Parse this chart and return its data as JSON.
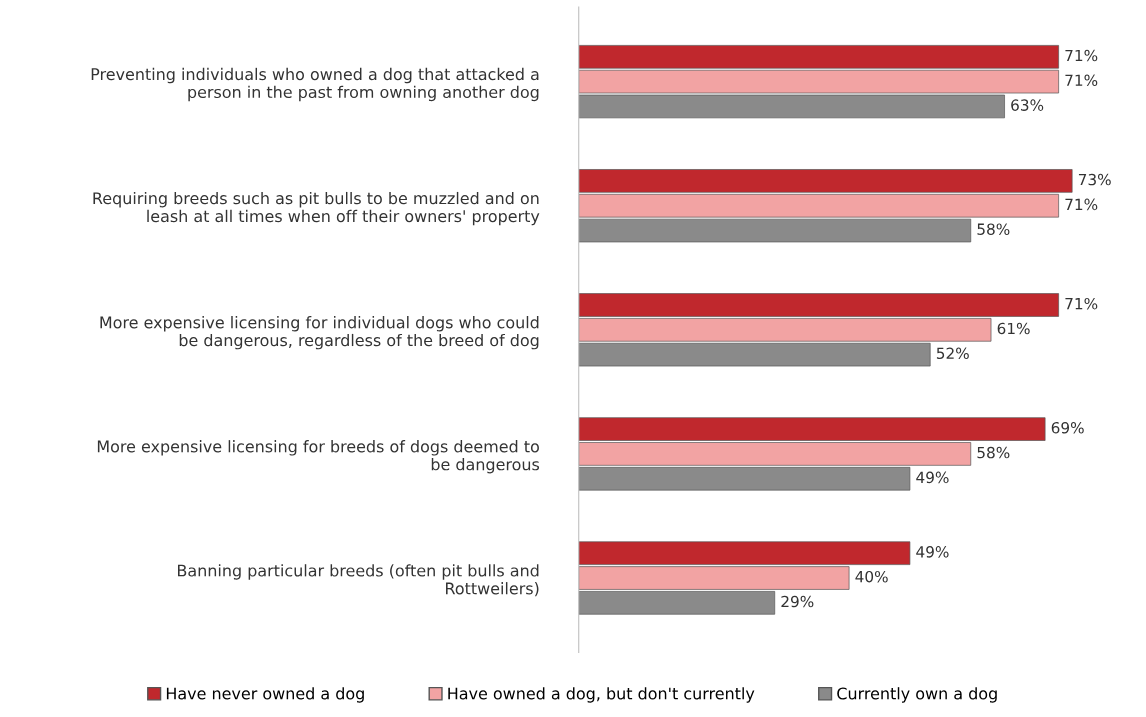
{
  "chart_data": {
    "type": "bar",
    "orientation": "horizontal",
    "categories": [
      "Preventing individuals who owned a dog that attacked a\nperson in the past from owning another dog",
      "Requiring breeds such as pit bulls to be muzzled and on\nleash at all times when off their owners' property",
      "More expensive licensing for individual dogs who could\nbe dangerous, regardless of the breed of dog",
      "More expensive licensing for breeds of dogs deemed to\nbe dangerous",
      "Banning particular breeds (often pit bulls and\nRottweilers)"
    ],
    "series": [
      {
        "name": "Have never owned a dog",
        "color": "#c0282d",
        "values": [
          71,
          73,
          71,
          69,
          49
        ],
        "value_labels": [
          "71%",
          "73%",
          "71%",
          "69%",
          "49%"
        ]
      },
      {
        "name": "Have owned a dog, but don't currently",
        "color": "#f2a3a3",
        "values": [
          71,
          71,
          61,
          58,
          40
        ],
        "value_labels": [
          "71%",
          "71%",
          "61%",
          "58%",
          "40%"
        ]
      },
      {
        "name": "Currently own a dog",
        "color": "#8a8a8a",
        "values": [
          63,
          58,
          52,
          49,
          29
        ],
        "value_labels": [
          "63%",
          "58%",
          "52%",
          "49%",
          "29%"
        ]
      }
    ],
    "legend": "bottom",
    "grid": false
  }
}
